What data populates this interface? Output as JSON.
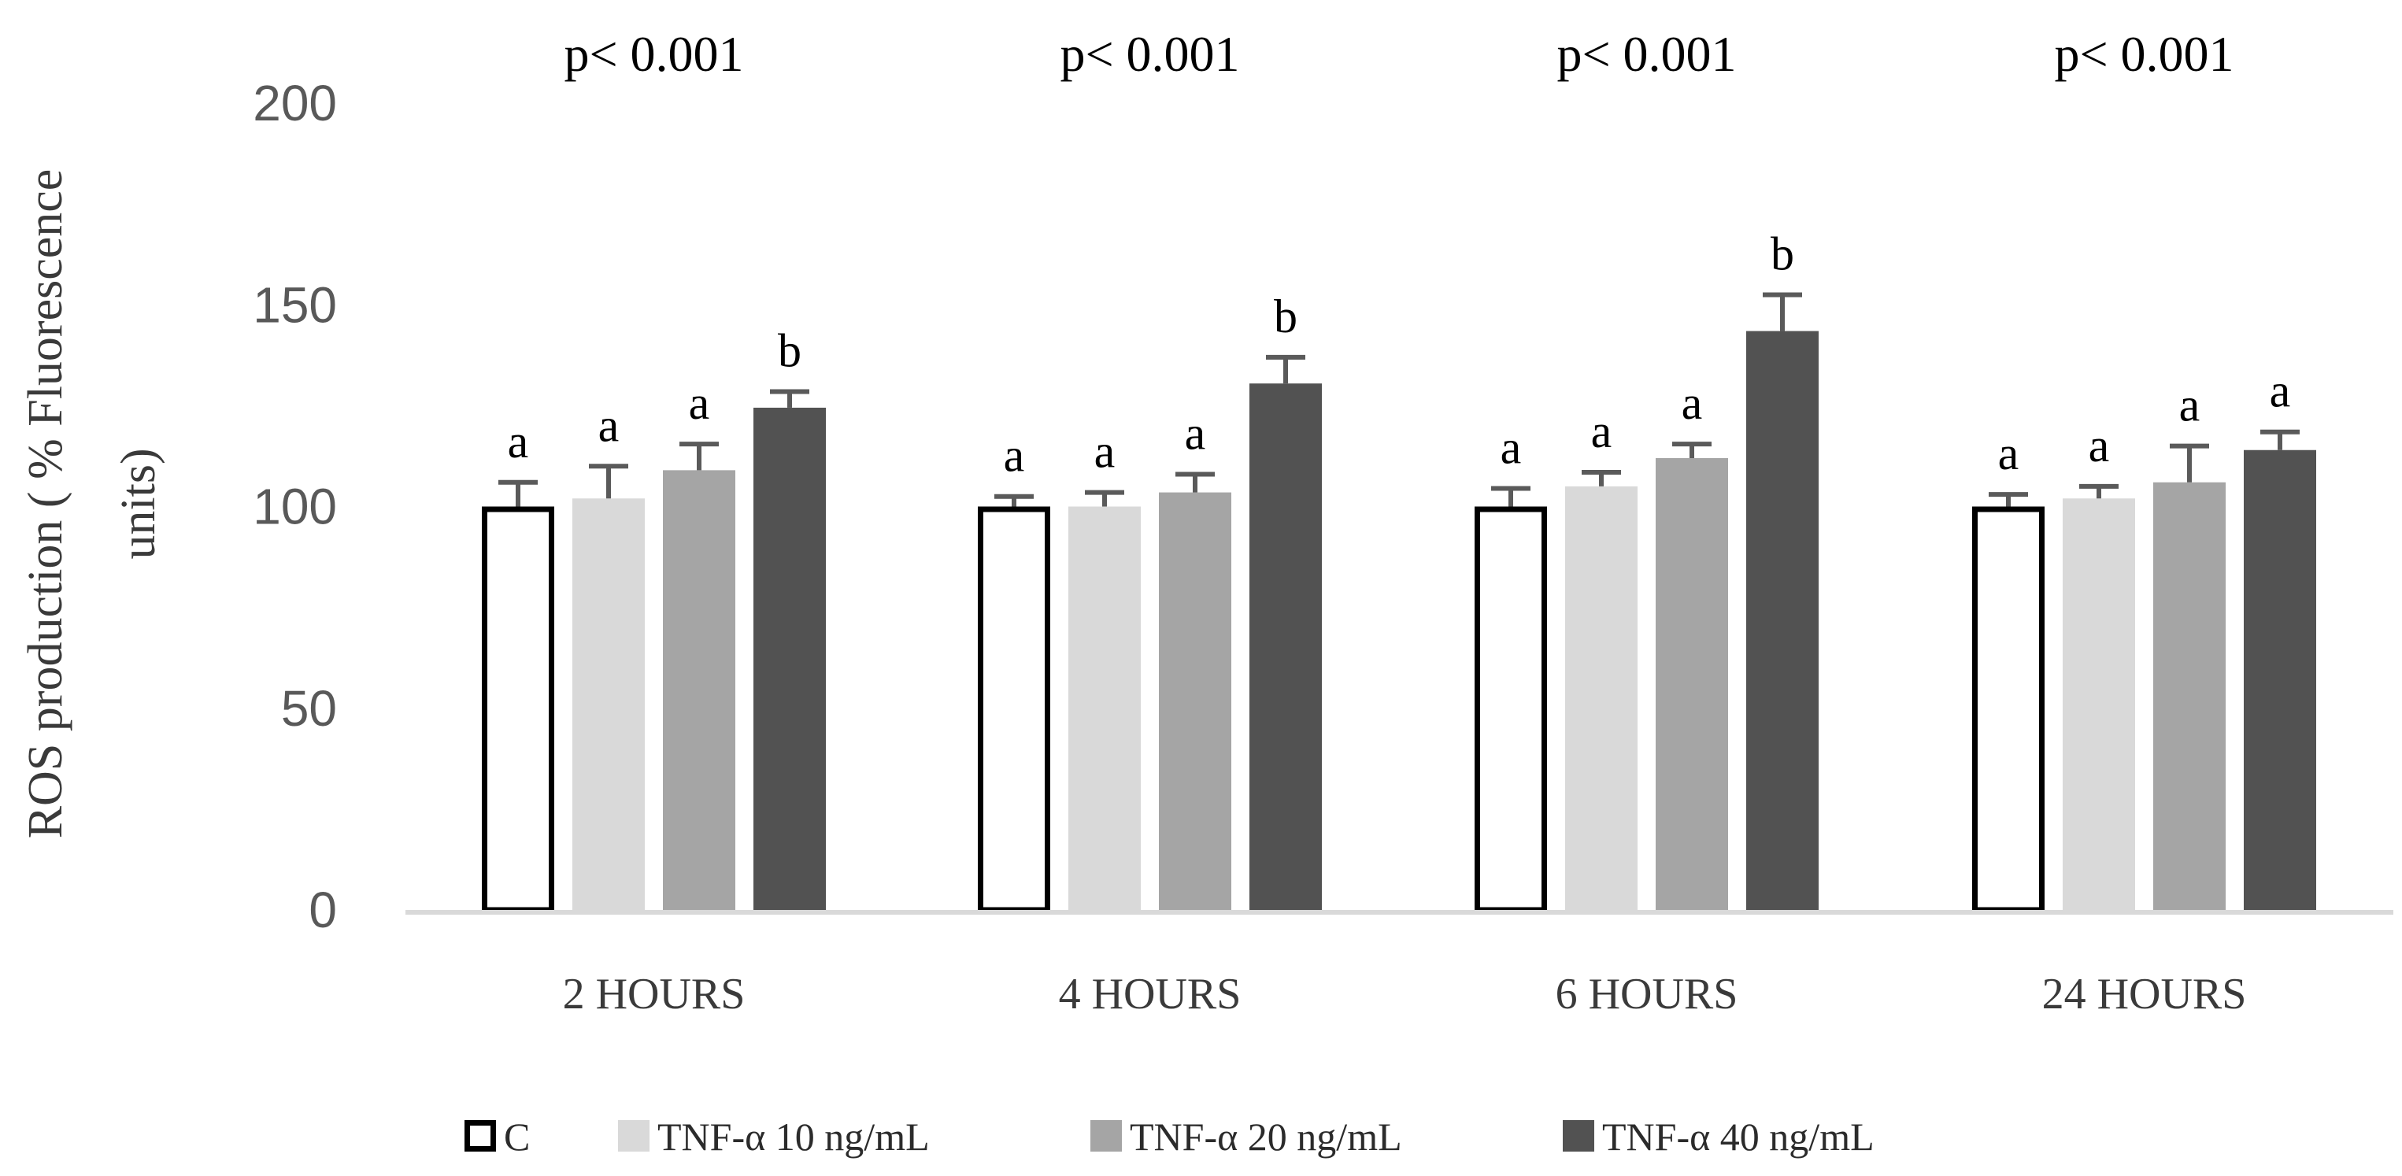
{
  "chart_data": {
    "type": "bar",
    "title": "",
    "xlabel": "",
    "ylabel": "ROS production ( % Fluorescence units)",
    "ylim": [
      0,
      200
    ],
    "yticks": [
      0,
      50,
      100,
      150,
      200
    ],
    "grid": false,
    "categories": [
      "2 HOURS",
      "4 HOURS",
      "6 HOURS",
      "24 HOURS"
    ],
    "pvalues": [
      "p< 0.001",
      "p< 0.001",
      "p< 0.001",
      "p< 0.001"
    ],
    "series": [
      {
        "name": "C",
        "fill": "#ffffff",
        "stroke": "#000000",
        "values": [
          100,
          100,
          100,
          100
        ],
        "errors": [
          6,
          2.5,
          4.5,
          3
        ],
        "letters": [
          "a",
          "a",
          "a",
          "a"
        ]
      },
      {
        "name": "TNF-α 10 ng/mL",
        "fill": "#d9d9d9",
        "stroke": "none",
        "values": [
          102,
          100,
          105,
          102
        ],
        "errors": [
          8,
          3.5,
          3.5,
          3
        ],
        "letters": [
          "a",
          "a",
          "a",
          "a"
        ]
      },
      {
        "name": "TNF-α 20 ng/mL",
        "fill": "#a5a5a5",
        "stroke": "none",
        "values": [
          109,
          103.5,
          112,
          106
        ],
        "errors": [
          6.5,
          4.5,
          3.5,
          9
        ],
        "letters": [
          "a",
          "a",
          "a",
          "a"
        ]
      },
      {
        "name": "TNF-α 40 ng/mL",
        "fill": "#525252",
        "stroke": "none",
        "values": [
          124.5,
          130.5,
          143.5,
          114
        ],
        "errors": [
          4,
          6.5,
          9,
          4.5
        ],
        "letters": [
          "b",
          "b",
          "b",
          "a"
        ]
      }
    ],
    "legend_position": "bottom"
  }
}
